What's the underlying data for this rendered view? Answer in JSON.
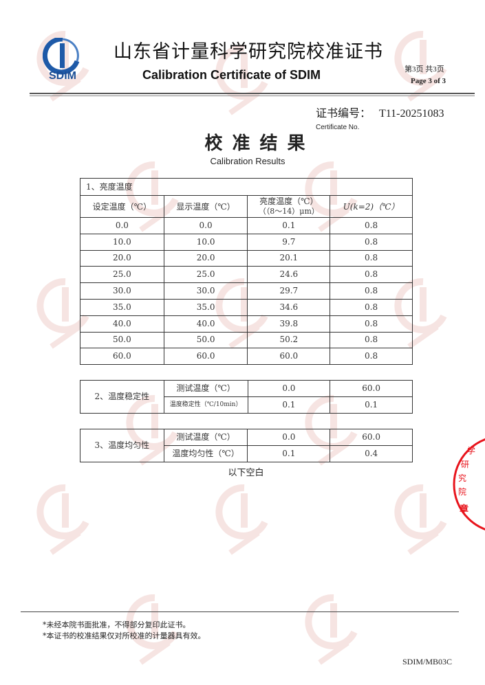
{
  "header": {
    "logo_text": "SDIM",
    "title_cn": "山东省计量科学研究院校准证书",
    "title_en": "Calibration Certificate of SDIM",
    "page_cn": "第3页 共3页",
    "page_en": "Page 3 of 3"
  },
  "certificate": {
    "label_cn": "证书编号：",
    "number": "T11-20251083",
    "label_en": "Certificate No."
  },
  "results": {
    "title_cn": "校准结果",
    "title_en": "Calibration Results"
  },
  "table1": {
    "section": "1、亮度温度",
    "headers": [
      "设定温度（℃）",
      "显示温度（℃）",
      "亮度温度（℃）",
      "（（8～14）μm）",
      "U(k=2)（℃）"
    ],
    "rows": [
      [
        "0.0",
        "0.0",
        "0.1",
        "0.8"
      ],
      [
        "10.0",
        "10.0",
        "9.7",
        "0.8"
      ],
      [
        "20.0",
        "20.0",
        "20.1",
        "0.8"
      ],
      [
        "25.0",
        "25.0",
        "24.6",
        "0.8"
      ],
      [
        "30.0",
        "30.0",
        "29.7",
        "0.8"
      ],
      [
        "35.0",
        "35.0",
        "34.6",
        "0.8"
      ],
      [
        "40.0",
        "40.0",
        "39.8",
        "0.8"
      ],
      [
        "50.0",
        "50.0",
        "50.2",
        "0.8"
      ],
      [
        "60.0",
        "60.0",
        "60.0",
        "0.8"
      ]
    ]
  },
  "table2": {
    "section": "2、温度稳定性",
    "rows": [
      [
        "测试温度（℃）",
        "0.0",
        "60.0"
      ],
      [
        "温度稳定性（℃/10min）",
        "0.1",
        "0.1"
      ]
    ]
  },
  "table3": {
    "section": "3、温度均匀性",
    "rows": [
      [
        "测试温度（℃）",
        "0.0",
        "60.0"
      ],
      [
        "温度均匀性（℃）",
        "0.1",
        "0.4"
      ]
    ]
  },
  "blank_note": "以下空白",
  "footer": {
    "notes": [
      "*未经本院书面批准，不得部分复印此证书。",
      "*本证书的校准结果仅对所校准的计量器具有效。"
    ],
    "form_no": "SDIM/MB03C"
  },
  "seal": {
    "text": "学研究院 章",
    "color": "#e8141c"
  },
  "colors": {
    "logo_blue": "#1e5aa8",
    "watermark": "#c0392b"
  }
}
